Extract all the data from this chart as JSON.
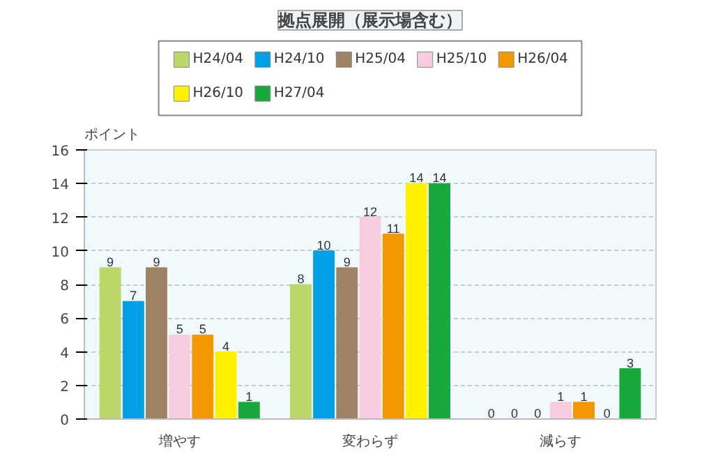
{
  "chart_data": {
    "type": "bar",
    "title": "拠点展開（展示場含む）",
    "ylabel": "ポイント",
    "categories": [
      "増やす",
      "変わらず",
      "減らす"
    ],
    "series": [
      {
        "name": "H24/04",
        "color": "#bdd66a",
        "values": [
          9,
          8,
          0
        ]
      },
      {
        "name": "H24/10",
        "color": "#00a0e6",
        "values": [
          7,
          10,
          0
        ]
      },
      {
        "name": "H25/04",
        "color": "#a08264",
        "values": [
          9,
          9,
          0
        ]
      },
      {
        "name": "H25/10",
        "color": "#f8cce0",
        "values": [
          5,
          12,
          1
        ]
      },
      {
        "name": "H26/04",
        "color": "#f39800",
        "values": [
          5,
          11,
          1
        ]
      },
      {
        "name": "H26/10",
        "color": "#fff100",
        "values": [
          4,
          14,
          0
        ]
      },
      {
        "name": "H27/04",
        "color": "#18a83c",
        "values": [
          1,
          14,
          3
        ]
      }
    ],
    "ylim": [
      0,
      16
    ],
    "yticks": [
      0,
      2,
      4,
      6,
      8,
      10,
      12,
      14,
      16
    ],
    "grid": "y",
    "legend": "top",
    "data_labels": true
  }
}
